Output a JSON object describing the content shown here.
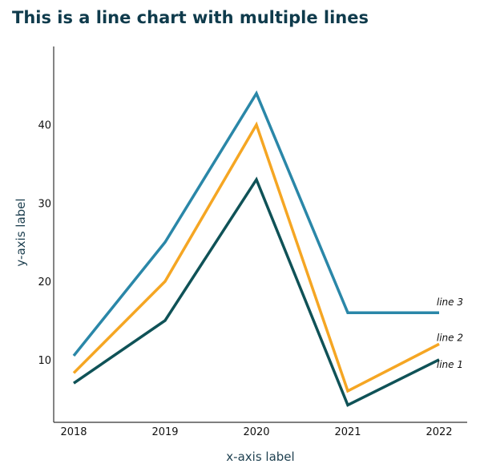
{
  "chart_data": {
    "type": "line",
    "title": "This is a line chart with multiple lines",
    "xlabel": "x-axis label",
    "ylabel": "y-axis label",
    "categories": [
      "2018",
      "2019",
      "2020",
      "2021",
      "2022"
    ],
    "ylim": [
      2,
      50
    ],
    "yticks": [
      10,
      20,
      30,
      40
    ],
    "grid": false,
    "legend": "direct labels at line ends",
    "series": [
      {
        "name": "line 1",
        "color": "#0f5257",
        "values": [
          7,
          15,
          33,
          4.2,
          10
        ]
      },
      {
        "name": "line 2",
        "color": "#f5a623",
        "values": [
          8.3,
          20,
          40,
          6,
          12
        ]
      },
      {
        "name": "line 3",
        "color": "#2a87a8",
        "values": [
          10.5,
          25,
          44,
          16,
          16
        ]
      }
    ]
  }
}
